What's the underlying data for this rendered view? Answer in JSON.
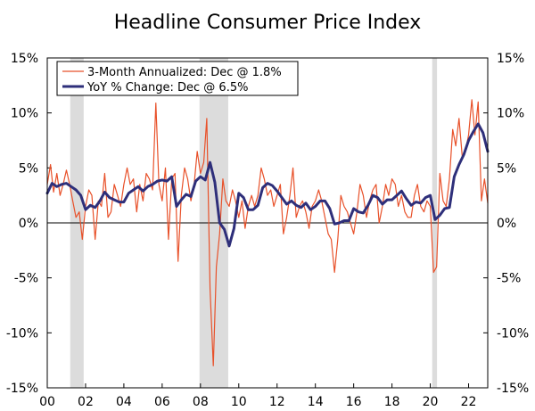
{
  "chart_data": {
    "type": "line",
    "title": "Headline Consumer Price Index",
    "xlabel": "",
    "ylabel": "",
    "x_range": [
      2000.0,
      2023.0
    ],
    "ylim": [
      -15,
      15
    ],
    "x_tick_values": [
      2000,
      2002,
      2004,
      2006,
      2008,
      2010,
      2012,
      2014,
      2016,
      2018,
      2020,
      2022
    ],
    "x_tick_labels": [
      "00",
      "02",
      "04",
      "06",
      "08",
      "10",
      "12",
      "14",
      "16",
      "18",
      "20",
      "22"
    ],
    "y_tick_values": [
      -15,
      -10,
      -5,
      0,
      5,
      10,
      15
    ],
    "y_tick_labels": [
      "-15%",
      "-10%",
      "-5%",
      "0%",
      "5%",
      "10%",
      "15%"
    ],
    "recessions": [
      [
        2001.2,
        2001.9
      ],
      [
        2007.95,
        2009.45
      ],
      [
        2020.1,
        2020.35
      ]
    ],
    "series": [
      {
        "name": "3-Month Annualized: Dec @ 1.8%",
        "color": "#e8512a",
        "x": [
          2000.0,
          2000.17,
          2000.33,
          2000.5,
          2000.67,
          2000.83,
          2001.0,
          2001.17,
          2001.33,
          2001.5,
          2001.67,
          2001.83,
          2002.0,
          2002.17,
          2002.33,
          2002.5,
          2002.67,
          2002.83,
          2003.0,
          2003.17,
          2003.33,
          2003.5,
          2003.67,
          2003.83,
          2004.0,
          2004.17,
          2004.33,
          2004.5,
          2004.67,
          2004.83,
          2005.0,
          2005.17,
          2005.33,
          2005.5,
          2005.67,
          2005.83,
          2006.0,
          2006.17,
          2006.33,
          2006.5,
          2006.67,
          2006.83,
          2007.0,
          2007.17,
          2007.33,
          2007.5,
          2007.67,
          2007.83,
          2008.0,
          2008.17,
          2008.33,
          2008.5,
          2008.67,
          2008.83,
          2009.0,
          2009.17,
          2009.33,
          2009.5,
          2009.67,
          2009.83,
          2010.0,
          2010.17,
          2010.33,
          2010.5,
          2010.67,
          2010.83,
          2011.0,
          2011.17,
          2011.33,
          2011.5,
          2011.67,
          2011.83,
          2012.0,
          2012.17,
          2012.33,
          2012.5,
          2012.67,
          2012.83,
          2013.0,
          2013.17,
          2013.33,
          2013.5,
          2013.67,
          2013.83,
          2014.0,
          2014.17,
          2014.33,
          2014.5,
          2014.67,
          2014.83,
          2015.0,
          2015.17,
          2015.33,
          2015.5,
          2015.67,
          2015.83,
          2016.0,
          2016.17,
          2016.33,
          2016.5,
          2016.67,
          2016.83,
          2017.0,
          2017.17,
          2017.33,
          2017.5,
          2017.67,
          2017.83,
          2018.0,
          2018.17,
          2018.33,
          2018.5,
          2018.67,
          2018.83,
          2019.0,
          2019.17,
          2019.33,
          2019.5,
          2019.67,
          2019.83,
          2020.0,
          2020.17,
          2020.33,
          2020.5,
          2020.67,
          2020.83,
          2021.0,
          2021.17,
          2021.33,
          2021.5,
          2021.67,
          2021.83,
          2022.0,
          2022.17,
          2022.33,
          2022.5,
          2022.67,
          2022.83,
          2023.0
        ],
        "values": [
          3.5,
          5.3,
          2.8,
          4.5,
          2.5,
          3.5,
          4.8,
          3.5,
          2.0,
          0.5,
          1.0,
          -1.5,
          1.5,
          3.0,
          2.5,
          -1.5,
          2.0,
          1.5,
          4.5,
          0.5,
          1.0,
          3.5,
          2.5,
          1.5,
          3.5,
          5.0,
          3.5,
          4.0,
          1.0,
          3.5,
          2.0,
          4.5,
          4.0,
          3.0,
          10.9,
          3.5,
          2.0,
          5.0,
          -1.5,
          4.0,
          4.5,
          -3.5,
          2.5,
          5.0,
          4.0,
          2.0,
          3.5,
          6.5,
          4.5,
          5.5,
          9.5,
          -6.0,
          -13.0,
          -4.0,
          -1.0,
          4.0,
          2.0,
          1.5,
          3.0,
          2.0,
          0.5,
          2.0,
          -0.5,
          1.5,
          2.5,
          1.5,
          2.5,
          5.0,
          4.0,
          2.5,
          3.0,
          1.5,
          2.5,
          3.5,
          -1.0,
          0.5,
          2.5,
          5.0,
          0.5,
          1.5,
          2.0,
          1.0,
          -0.5,
          1.5,
          2.0,
          3.0,
          2.0,
          0.5,
          -1.0,
          -1.5,
          -4.5,
          -1.5,
          2.5,
          1.5,
          1.0,
          0.0,
          -1.0,
          1.0,
          3.5,
          2.5,
          0.5,
          2.0,
          3.0,
          3.5,
          0.0,
          1.5,
          3.5,
          2.5,
          4.0,
          3.5,
          1.5,
          2.5,
          1.0,
          0.5,
          0.5,
          2.5,
          3.5,
          1.5,
          1.0,
          2.0,
          1.5,
          -4.5,
          -4.0,
          4.5,
          2.0,
          1.5,
          4.0,
          8.5,
          7.0,
          9.5,
          6.0,
          6.5,
          8.0,
          11.2,
          8.0,
          11.0,
          2.0,
          4.0,
          1.8
        ]
      },
      {
        "name": "YoY % Change: Dec @ 6.5%",
        "color": "#2e2f7a",
        "x": [
          2000.0,
          2000.25,
          2000.5,
          2000.75,
          2001.0,
          2001.25,
          2001.5,
          2001.75,
          2002.0,
          2002.25,
          2002.5,
          2002.75,
          2003.0,
          2003.25,
          2003.5,
          2003.75,
          2004.0,
          2004.25,
          2004.5,
          2004.75,
          2005.0,
          2005.25,
          2005.5,
          2005.75,
          2006.0,
          2006.25,
          2006.5,
          2006.75,
          2007.0,
          2007.25,
          2007.5,
          2007.75,
          2008.0,
          2008.25,
          2008.5,
          2008.75,
          2009.0,
          2009.25,
          2009.5,
          2009.75,
          2010.0,
          2010.25,
          2010.5,
          2010.75,
          2011.0,
          2011.25,
          2011.5,
          2011.75,
          2012.0,
          2012.25,
          2012.5,
          2012.75,
          2013.0,
          2013.25,
          2013.5,
          2013.75,
          2014.0,
          2014.25,
          2014.5,
          2014.75,
          2015.0,
          2015.25,
          2015.5,
          2015.75,
          2016.0,
          2016.25,
          2016.5,
          2016.75,
          2017.0,
          2017.25,
          2017.5,
          2017.75,
          2018.0,
          2018.25,
          2018.5,
          2018.75,
          2019.0,
          2019.25,
          2019.5,
          2019.75,
          2020.0,
          2020.25,
          2020.5,
          2020.75,
          2021.0,
          2021.25,
          2021.5,
          2021.75,
          2022.0,
          2022.25,
          2022.5,
          2022.75,
          2023.0
        ],
        "values": [
          2.7,
          3.6,
          3.3,
          3.5,
          3.6,
          3.3,
          3.0,
          2.5,
          1.2,
          1.6,
          1.4,
          2.0,
          2.8,
          2.3,
          2.1,
          1.9,
          1.9,
          2.7,
          3.0,
          3.3,
          2.9,
          3.3,
          3.5,
          3.8,
          3.9,
          3.8,
          4.2,
          1.5,
          2.1,
          2.6,
          2.4,
          3.8,
          4.2,
          3.9,
          5.5,
          3.7,
          0.0,
          -0.6,
          -2.1,
          -0.5,
          2.7,
          2.3,
          1.2,
          1.2,
          1.6,
          3.2,
          3.6,
          3.4,
          2.9,
          2.3,
          1.7,
          2.0,
          1.6,
          1.4,
          1.8,
          1.2,
          1.5,
          2.0,
          2.0,
          1.3,
          -0.1,
          0.0,
          0.2,
          0.2,
          1.3,
          1.0,
          0.9,
          1.6,
          2.5,
          2.3,
          1.7,
          2.1,
          2.1,
          2.5,
          2.9,
          2.2,
          1.6,
          1.9,
          1.8,
          2.3,
          2.5,
          0.3,
          0.7,
          1.3,
          1.4,
          4.2,
          5.3,
          6.2,
          7.5,
          8.3,
          9.0,
          8.2,
          6.5
        ]
      }
    ],
    "legend": {
      "position": "top-left",
      "entries": [
        "3-Month Annualized: Dec @ 1.8%",
        "YoY % Change: Dec @ 6.5%"
      ]
    }
  }
}
